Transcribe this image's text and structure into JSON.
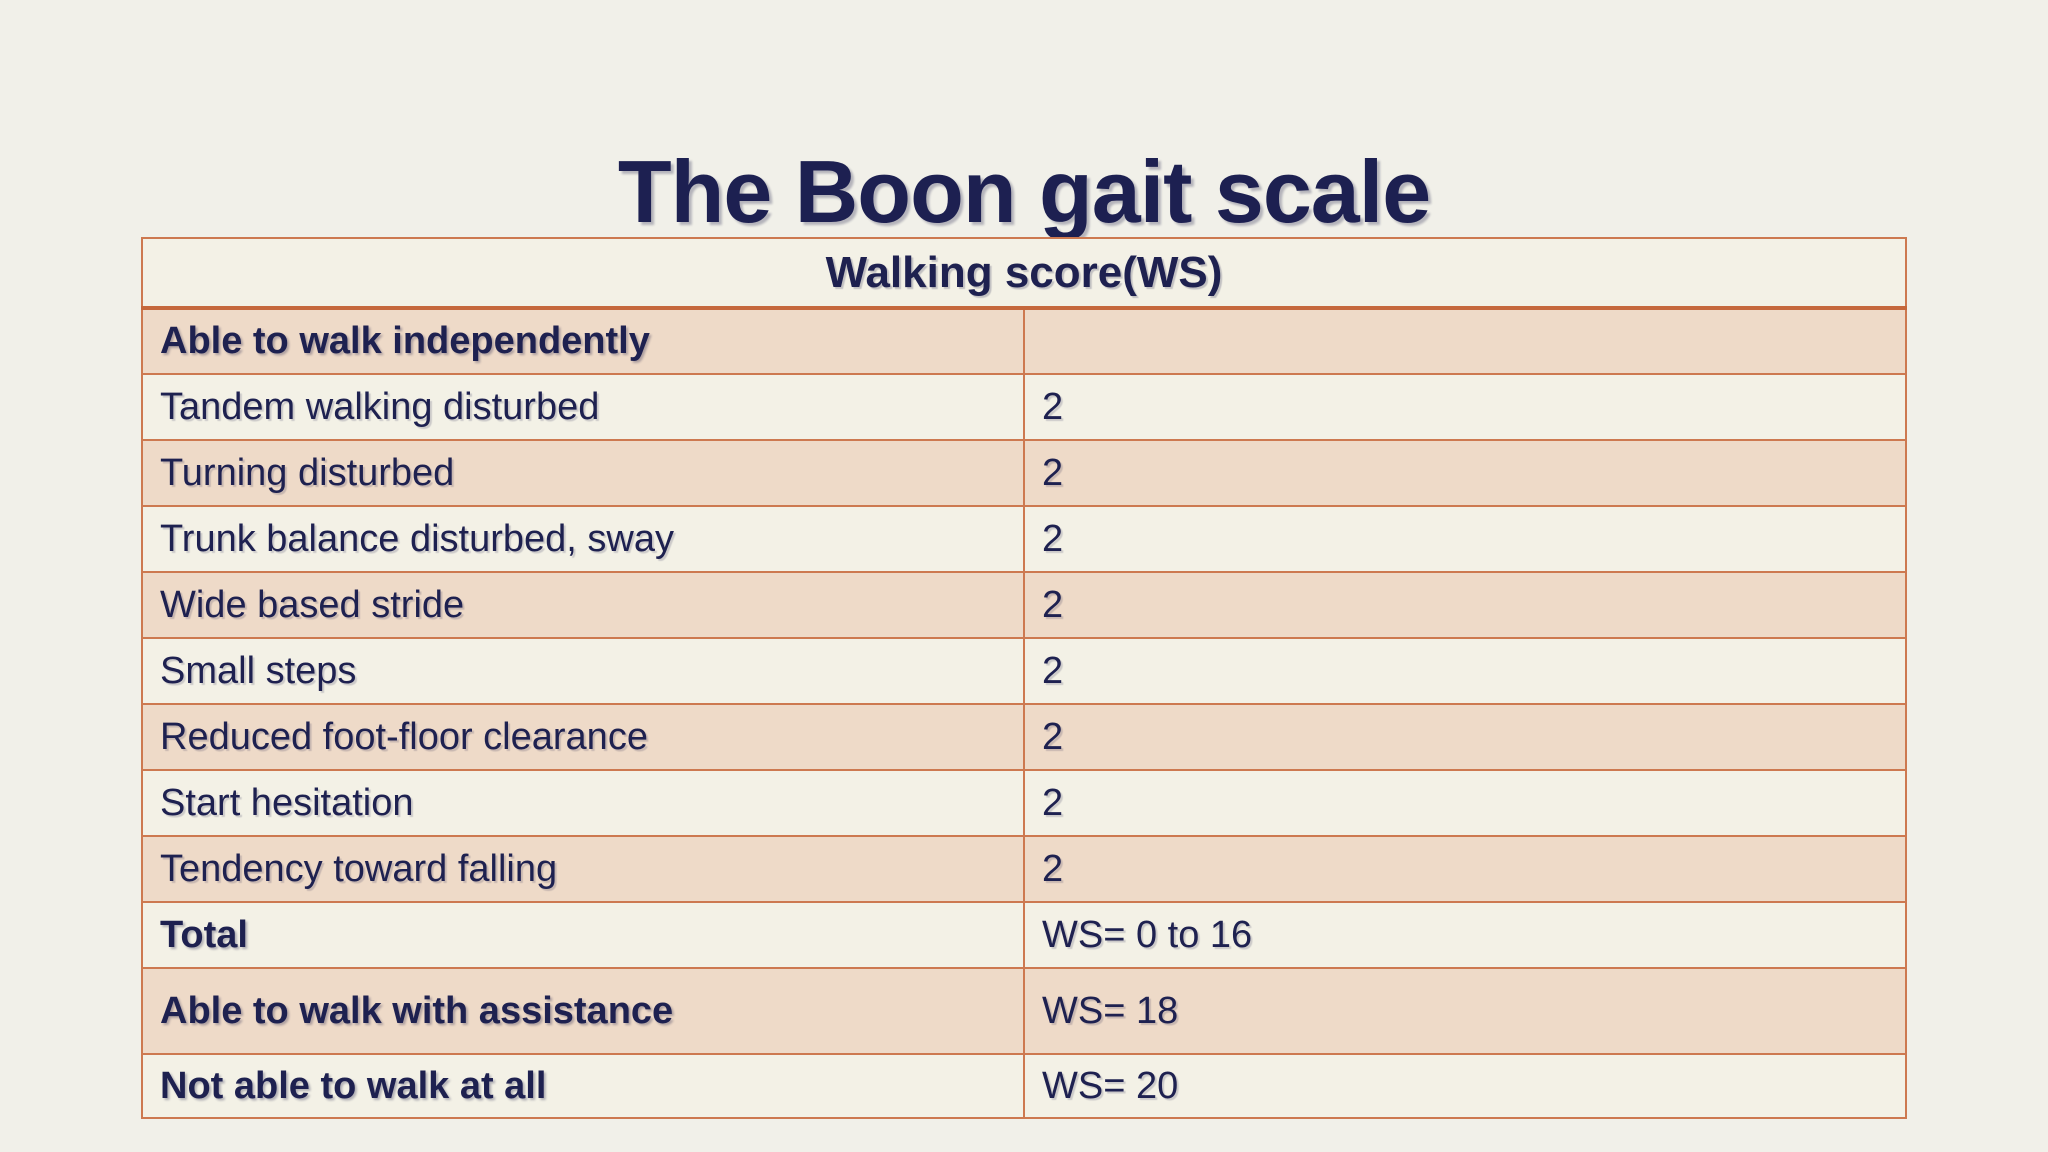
{
  "slide": {
    "title": "The Boon gait scale",
    "colors": {
      "background": "#f1f0e9",
      "row_light": "#f3f1e6",
      "row_peach": "#eedac8",
      "border": "#cd7950",
      "header_border": "#c5683c",
      "text": "#1e2150"
    },
    "table": {
      "header": "Walking score(WS)",
      "rows": [
        {
          "label": "Able to walk independently",
          "value": "",
          "bold": true
        },
        {
          "label": "Tandem walking disturbed",
          "value": "2",
          "bold": false
        },
        {
          "label": "Turning disturbed",
          "value": "2",
          "bold": false
        },
        {
          "label": "Trunk balance disturbed, sway",
          "value": "2",
          "bold": false
        },
        {
          "label": "Wide based stride",
          "value": "2",
          "bold": false
        },
        {
          "label": "Small steps",
          "value": "2",
          "bold": false
        },
        {
          "label": "Reduced foot-floor clearance",
          "value": "2",
          "bold": false
        },
        {
          "label": "Start hesitation",
          "value": "2",
          "bold": false
        },
        {
          "label": "Tendency toward falling",
          "value": "2",
          "bold": false
        },
        {
          "label": "Total",
          "value": "WS= 0 to 16",
          "bold": true
        },
        {
          "label": "Able to walk with assistance",
          "value": "WS= 18",
          "bold": true
        },
        {
          "label": "Not able to walk at all",
          "value": "WS= 20",
          "bold": true
        }
      ]
    }
  }
}
